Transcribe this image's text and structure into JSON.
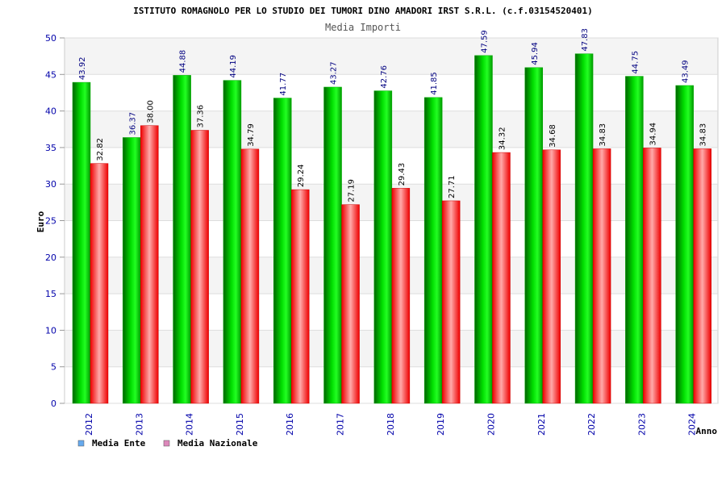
{
  "chart_data": {
    "type": "bar",
    "title": "ISTITUTO ROMAGNOLO PER LO STUDIO DEI TUMORI DINO AMADORI IRST S.R.L. (c.f.03154520401)",
    "subtitle": "Media Importi",
    "xlabel": "Anno",
    "ylabel": "Euro",
    "ylim": [
      0,
      50
    ],
    "yticks": [
      0,
      5,
      10,
      15,
      20,
      25,
      30,
      35,
      40,
      45,
      50
    ],
    "grid": true,
    "legend_position": "bottom-left",
    "categories": [
      "2012",
      "2013",
      "2014",
      "2015",
      "2016",
      "2017",
      "2018",
      "2019",
      "2020",
      "2021",
      "2022",
      "2023",
      "2024"
    ],
    "series": [
      {
        "name": "Media Ente",
        "color": "#00cc00",
        "legend_color": "#66aaee",
        "label_color": "#000080",
        "values": [
          43.92,
          36.37,
          44.88,
          44.19,
          41.77,
          43.27,
          42.76,
          41.85,
          47.59,
          45.94,
          47.83,
          44.75,
          43.49
        ],
        "labels": [
          "43.92",
          "36.37",
          "44.88",
          "44.19",
          "41.77",
          "43.27",
          "42.76",
          "41.85",
          "47.59",
          "45.94",
          "47.83",
          "44.75",
          "43.49"
        ]
      },
      {
        "name": "Media Nazionale",
        "color": "#ee1111",
        "legend_color": "#dd88bb",
        "label_color": "#000000",
        "values": [
          32.82,
          38.0,
          37.36,
          34.79,
          29.24,
          27.19,
          29.43,
          27.71,
          34.32,
          34.68,
          34.83,
          34.94,
          34.83
        ],
        "labels": [
          "32.82",
          "38.00",
          "37.36",
          "34.79",
          "29.24",
          "27.19",
          "29.43",
          "27.71",
          "34.32",
          "34.68",
          "34.83",
          "34.94",
          "34.83"
        ]
      }
    ]
  }
}
